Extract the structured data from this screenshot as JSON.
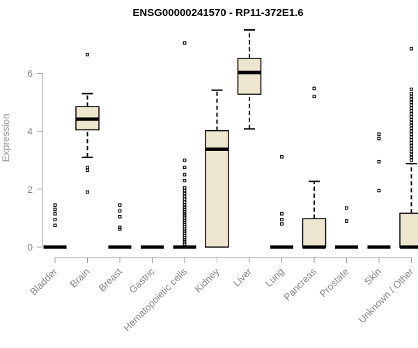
{
  "chart_data": {
    "type": "boxplot",
    "title": "ENSG00000241570 - RP11-372E1.6",
    "xlabel": "",
    "ylabel": "Expression",
    "ylim": [
      0,
      7.5
    ],
    "yticks": [
      0,
      2,
      4,
      6
    ],
    "box_color": "#ede6cf",
    "categories": [
      "Bladder",
      "Brain",
      "Breast",
      "Gastric",
      "Hematopoietic cells",
      "Kidney",
      "Liver",
      "Lung",
      "Pancreas",
      "Prostate",
      "Skin",
      "Unknown / Other"
    ],
    "boxes": [
      {
        "name": "Bladder",
        "min": 0,
        "q1": 0,
        "median": 0,
        "q3": 0,
        "max": 0,
        "outliers": [
          0.75,
          0.95,
          1.15,
          1.3,
          1.45
        ]
      },
      {
        "name": "Brain",
        "min": 3.1,
        "q1": 4.05,
        "median": 4.42,
        "q3": 4.85,
        "max": 5.3,
        "outliers": [
          1.9,
          2.65,
          2.75,
          6.65
        ]
      },
      {
        "name": "Breast",
        "min": 0,
        "q1": 0,
        "median": 0,
        "q3": 0,
        "max": 0,
        "outliers": [
          0.62,
          0.68,
          1.05,
          1.25,
          1.45
        ]
      },
      {
        "name": "Gastric",
        "min": 0,
        "q1": 0,
        "median": 0,
        "q3": 0,
        "max": 0,
        "outliers": []
      },
      {
        "name": "Hematopoietic cells",
        "min": 0,
        "q1": 0,
        "median": 0,
        "q3": 0,
        "max": 0,
        "outliers": [
          0.1,
          0.18,
          0.25,
          0.32,
          0.4,
          0.48,
          0.55,
          0.62,
          0.7,
          0.78,
          0.85,
          0.92,
          1.0,
          1.08,
          1.15,
          1.22,
          1.3,
          1.38,
          1.45,
          1.55,
          1.65,
          1.75,
          1.85,
          1.95,
          2.05,
          2.3,
          2.5,
          2.75,
          3.0,
          7.05
        ]
      },
      {
        "name": "Kidney",
        "min": 0,
        "q1": 0,
        "median": 3.38,
        "q3": 4.02,
        "max": 5.42,
        "outliers": []
      },
      {
        "name": "Liver",
        "min": 4.08,
        "q1": 5.28,
        "median": 6.03,
        "q3": 6.52,
        "max": 7.5,
        "outliers": []
      },
      {
        "name": "Lung",
        "min": 0,
        "q1": 0,
        "median": 0,
        "q3": 0,
        "max": 0,
        "outliers": [
          0.8,
          0.95,
          1.15,
          3.12
        ]
      },
      {
        "name": "Pancreas",
        "min": 0,
        "q1": 0,
        "median": 0,
        "q3": 0.98,
        "max": 2.27,
        "outliers": [
          5.2,
          5.48
        ]
      },
      {
        "name": "Prostate",
        "min": 0,
        "q1": 0,
        "median": 0,
        "q3": 0,
        "max": 0,
        "outliers": [
          0.9,
          1.35
        ]
      },
      {
        "name": "Skin",
        "min": 0,
        "q1": 0,
        "median": 0,
        "q3": 0,
        "max": 0,
        "outliers": [
          1.95,
          2.95,
          3.75,
          3.9
        ]
      },
      {
        "name": "Unknown / Other",
        "min": 0,
        "q1": 0,
        "median": 0,
        "q3": 1.17,
        "max": 2.88,
        "outliers": [
          3.0,
          3.1,
          3.2,
          3.3,
          3.4,
          3.5,
          3.6,
          3.7,
          3.8,
          3.9,
          4.0,
          4.1,
          4.2,
          4.3,
          4.4,
          4.5,
          4.6,
          4.7,
          4.8,
          4.9,
          5.0,
          5.1,
          5.2,
          5.3,
          5.45,
          6.85
        ]
      }
    ]
  }
}
